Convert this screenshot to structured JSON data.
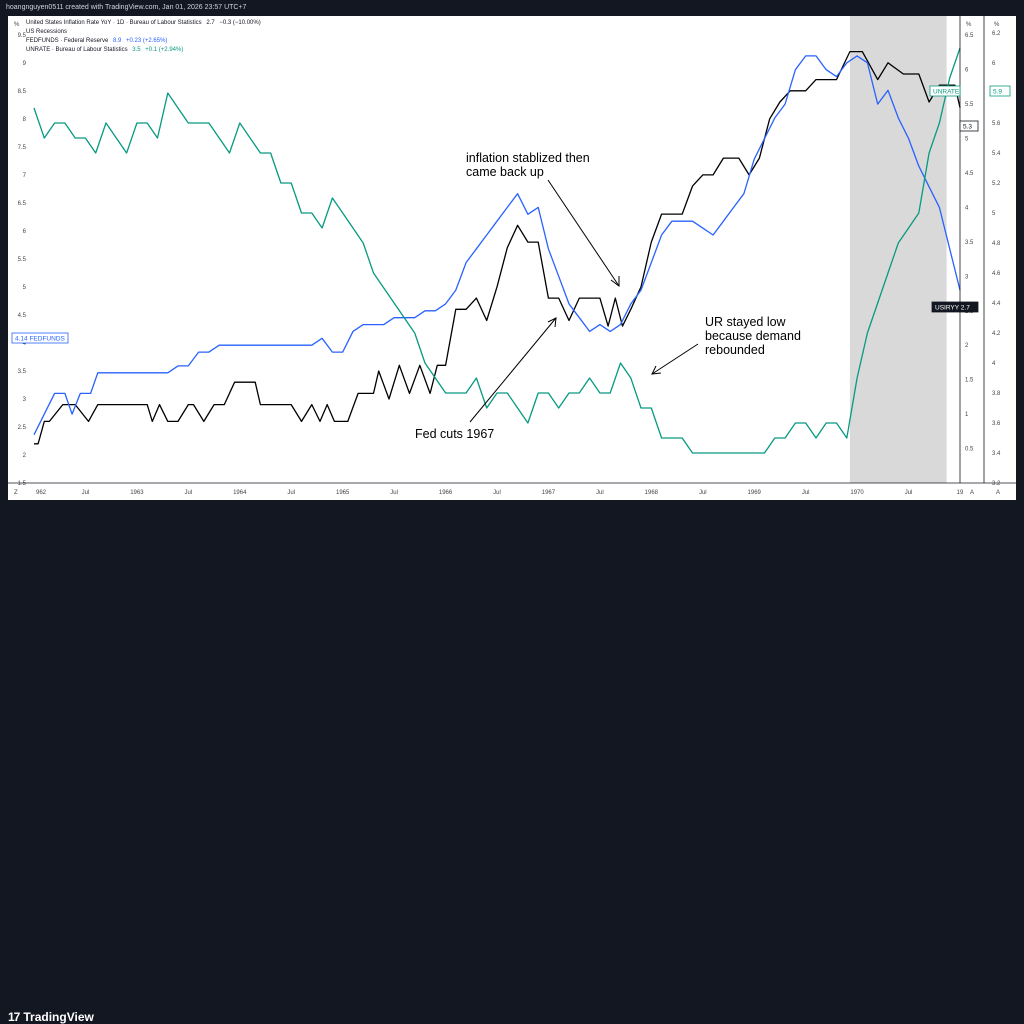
{
  "header": {
    "attribution": "hoangnguyen0511 created with TradingView.com, Jan 01, 2026 23:57 UTC+7"
  },
  "branding": {
    "logo_text": "TradingView",
    "logo_mark": "17"
  },
  "legend": [
    {
      "name": "United States Inflation Rate YoY · 1D · Bureau of Labour Statistics",
      "value": "2.7",
      "change": "−0.3 (−10.00%)",
      "color": "#131722"
    },
    {
      "name": "US Recessions",
      "value": "",
      "change": "",
      "color": "#131722"
    },
    {
      "name": "FEDFUNDS · Federal Reserve",
      "value": "8.9",
      "change": "+0.23 (+2.65%)",
      "color": "#2962ff"
    },
    {
      "name": "UNRATE · Bureau of Labour Statistics",
      "value": "3.5",
      "change": "+0.1 (+2.94%)",
      "color": "#089981"
    }
  ],
  "scale_labels": {
    "left": "%",
    "mid": "%",
    "right": "%",
    "corner_left": "Z",
    "corner_mid": "A",
    "corner_right": "A"
  },
  "axis_tags": {
    "fedfunds": {
      "value": "4.14",
      "name": "FEDFUNDS"
    },
    "inflation": {
      "name": "USIRYY",
      "value": "2.7"
    },
    "unrate_value": "5.9",
    "unrate_name": "UNRATE",
    "inflation_right": "5.3"
  },
  "annotations": {
    "inflation": [
      "inflation stablized then",
      "came back up"
    ],
    "ur": [
      "UR stayed low",
      "because demand",
      "rebounded"
    ],
    "fed": [
      "Fed cuts 1967"
    ]
  },
  "chart_data": {
    "type": "line",
    "x_labels": [
      "962",
      "Jul",
      "1963",
      "Jul",
      "1964",
      "Jul",
      "1965",
      "Jul",
      "1966",
      "Jul",
      "1967",
      "Jul",
      "1968",
      "Jul",
      "1969",
      "Jul",
      "1970",
      "Jul",
      "19"
    ],
    "x_range": [
      1962.0,
      1971.0
    ],
    "axes": {
      "inflation": {
        "range": [
          1.5,
          9.8
        ],
        "ticks": [
          "1.5",
          "2",
          "2.5",
          "3",
          "3.5",
          "4",
          "4.5",
          "5",
          "5.5",
          "6",
          "6.5",
          "7",
          "7.5",
          "8",
          "8.5",
          "9",
          "9.5"
        ]
      },
      "fedfunds": {
        "range": [
          0,
          6.75
        ],
        "ticks": [
          "0.5",
          "1",
          "1.5",
          "2",
          "2.5",
          "3",
          "3.5",
          "4",
          "4.5",
          "5",
          "5.5",
          "6",
          "6.5"
        ]
      },
      "unrate": {
        "range": [
          3.2,
          6.3
        ],
        "ticks": [
          "3.2",
          "3.4",
          "3.6",
          "3.8",
          "4",
          "4.2",
          "4.4",
          "4.6",
          "4.8",
          "5",
          "5.2",
          "5.4",
          "5.6",
          "5.8",
          "6",
          "6.2"
        ]
      }
    },
    "recession": {
      "start": 1969.93,
      "end": 1970.87
    },
    "series": [
      {
        "name": "United States Inflation Rate YoY",
        "axis": "inflation",
        "color": "#000000",
        "points": [
          [
            1962.0,
            2.2
          ],
          [
            1962.04,
            2.2
          ],
          [
            1962.1,
            2.6
          ],
          [
            1962.15,
            2.6
          ],
          [
            1962.28,
            2.9
          ],
          [
            1962.4,
            2.9
          ],
          [
            1962.53,
            2.6
          ],
          [
            1962.62,
            2.9
          ],
          [
            1963.0,
            2.9
          ],
          [
            1963.1,
            2.9
          ],
          [
            1963.15,
            2.6
          ],
          [
            1963.22,
            2.9
          ],
          [
            1963.3,
            2.6
          ],
          [
            1963.4,
            2.6
          ],
          [
            1963.5,
            2.9
          ],
          [
            1963.55,
            2.9
          ],
          [
            1963.65,
            2.6
          ],
          [
            1963.75,
            2.9
          ],
          [
            1963.85,
            2.9
          ],
          [
            1963.95,
            3.3
          ],
          [
            1964.15,
            3.3
          ],
          [
            1964.2,
            2.9
          ],
          [
            1964.5,
            2.9
          ],
          [
            1964.6,
            2.6
          ],
          [
            1964.7,
            2.9
          ],
          [
            1964.78,
            2.6
          ],
          [
            1964.85,
            2.9
          ],
          [
            1964.92,
            2.6
          ],
          [
            1965.05,
            2.6
          ],
          [
            1965.15,
            3.1
          ],
          [
            1965.3,
            3.1
          ],
          [
            1965.35,
            3.5
          ],
          [
            1965.45,
            3.0
          ],
          [
            1965.55,
            3.6
          ],
          [
            1965.65,
            3.1
          ],
          [
            1965.75,
            3.6
          ],
          [
            1965.85,
            3.1
          ],
          [
            1965.92,
            3.6
          ],
          [
            1966.0,
            3.6
          ],
          [
            1966.1,
            4.6
          ],
          [
            1966.2,
            4.6
          ],
          [
            1966.3,
            4.8
          ],
          [
            1966.4,
            4.4
          ],
          [
            1966.5,
            5.0
          ],
          [
            1966.6,
            5.7
          ],
          [
            1966.7,
            6.1
          ],
          [
            1966.8,
            5.8
          ],
          [
            1966.9,
            5.8
          ],
          [
            1967.0,
            4.8
          ],
          [
            1967.1,
            4.8
          ],
          [
            1967.2,
            4.4
          ],
          [
            1967.3,
            4.8
          ],
          [
            1967.4,
            4.8
          ],
          [
            1967.5,
            4.8
          ],
          [
            1967.58,
            4.3
          ],
          [
            1967.65,
            4.8
          ],
          [
            1967.72,
            4.3
          ],
          [
            1967.8,
            4.6
          ],
          [
            1967.9,
            5.0
          ],
          [
            1968.0,
            5.8
          ],
          [
            1968.1,
            6.3
          ],
          [
            1968.2,
            6.3
          ],
          [
            1968.3,
            6.3
          ],
          [
            1968.4,
            6.8
          ],
          [
            1968.5,
            7.0
          ],
          [
            1968.6,
            7.0
          ],
          [
            1968.7,
            7.3
          ],
          [
            1968.85,
            7.3
          ],
          [
            1968.95,
            7.0
          ],
          [
            1969.05,
            7.3
          ],
          [
            1969.15,
            8.0
          ],
          [
            1969.25,
            8.3
          ],
          [
            1969.35,
            8.5
          ],
          [
            1969.5,
            8.5
          ],
          [
            1969.6,
            8.7
          ],
          [
            1969.8,
            8.7
          ],
          [
            1969.93,
            9.2
          ],
          [
            1970.05,
            9.2
          ],
          [
            1970.2,
            8.7
          ],
          [
            1970.3,
            9.0
          ],
          [
            1970.45,
            8.8
          ],
          [
            1970.6,
            8.8
          ],
          [
            1970.7,
            8.3
          ],
          [
            1970.8,
            8.6
          ],
          [
            1970.95,
            8.6
          ],
          [
            1971.0,
            8.2
          ]
        ]
      },
      {
        "name": "FEDFUNDS",
        "axis": "fedfunds",
        "color": "#2962ff",
        "points": [
          [
            1962.0,
            0.7
          ],
          [
            1962.1,
            1.0
          ],
          [
            1962.2,
            1.3
          ],
          [
            1962.3,
            1.3
          ],
          [
            1962.37,
            1.0
          ],
          [
            1962.45,
            1.3
          ],
          [
            1962.55,
            1.3
          ],
          [
            1962.62,
            1.6
          ],
          [
            1963.0,
            1.6
          ],
          [
            1963.1,
            1.6
          ],
          [
            1963.2,
            1.6
          ],
          [
            1963.3,
            1.6
          ],
          [
            1963.4,
            1.7
          ],
          [
            1963.5,
            1.7
          ],
          [
            1963.6,
            1.9
          ],
          [
            1963.7,
            1.9
          ],
          [
            1963.8,
            2.0
          ],
          [
            1963.9,
            2.0
          ],
          [
            1964.0,
            2.0
          ],
          [
            1964.1,
            2.0
          ],
          [
            1964.2,
            2.0
          ],
          [
            1964.3,
            2.0
          ],
          [
            1964.4,
            2.0
          ],
          [
            1964.5,
            2.0
          ],
          [
            1964.6,
            2.0
          ],
          [
            1964.7,
            2.0
          ],
          [
            1964.8,
            2.1
          ],
          [
            1964.9,
            1.9
          ],
          [
            1965.0,
            1.9
          ],
          [
            1965.1,
            2.2
          ],
          [
            1965.2,
            2.3
          ],
          [
            1965.3,
            2.3
          ],
          [
            1965.4,
            2.3
          ],
          [
            1965.5,
            2.4
          ],
          [
            1965.6,
            2.4
          ],
          [
            1965.7,
            2.4
          ],
          [
            1965.8,
            2.5
          ],
          [
            1965.9,
            2.5
          ],
          [
            1966.0,
            2.6
          ],
          [
            1966.1,
            2.8
          ],
          [
            1966.2,
            3.2
          ],
          [
            1966.3,
            3.4
          ],
          [
            1966.4,
            3.6
          ],
          [
            1966.5,
            3.8
          ],
          [
            1966.6,
            4.0
          ],
          [
            1966.7,
            4.2
          ],
          [
            1966.8,
            3.9
          ],
          [
            1966.9,
            4.0
          ],
          [
            1967.0,
            3.4
          ],
          [
            1967.1,
            3.0
          ],
          [
            1967.2,
            2.6
          ],
          [
            1967.3,
            2.4
          ],
          [
            1967.4,
            2.2
          ],
          [
            1967.5,
            2.3
          ],
          [
            1967.6,
            2.2
          ],
          [
            1967.7,
            2.3
          ],
          [
            1967.8,
            2.6
          ],
          [
            1967.9,
            2.8
          ],
          [
            1968.0,
            3.2
          ],
          [
            1968.1,
            3.6
          ],
          [
            1968.2,
            3.8
          ],
          [
            1968.3,
            3.8
          ],
          [
            1968.4,
            3.8
          ],
          [
            1968.5,
            3.7
          ],
          [
            1968.6,
            3.6
          ],
          [
            1968.7,
            3.8
          ],
          [
            1968.8,
            4.0
          ],
          [
            1968.9,
            4.2
          ],
          [
            1969.0,
            4.7
          ],
          [
            1969.1,
            5.0
          ],
          [
            1969.2,
            5.3
          ],
          [
            1969.3,
            5.5
          ],
          [
            1969.4,
            6.0
          ],
          [
            1969.5,
            6.2
          ],
          [
            1969.6,
            6.2
          ],
          [
            1969.7,
            6.0
          ],
          [
            1969.8,
            5.9
          ],
          [
            1969.9,
            6.1
          ],
          [
            1970.0,
            6.2
          ],
          [
            1970.1,
            6.1
          ],
          [
            1970.2,
            5.5
          ],
          [
            1970.3,
            5.7
          ],
          [
            1970.4,
            5.3
          ],
          [
            1970.5,
            5.0
          ],
          [
            1970.6,
            4.6
          ],
          [
            1970.7,
            4.3
          ],
          [
            1970.8,
            4.0
          ],
          [
            1970.9,
            3.4
          ],
          [
            1971.0,
            2.8
          ]
        ]
      },
      {
        "name": "UNRATE",
        "axis": "unrate",
        "color": "#089981",
        "points": [
          [
            1962.0,
            5.7
          ],
          [
            1962.1,
            5.5
          ],
          [
            1962.2,
            5.6
          ],
          [
            1962.3,
            5.6
          ],
          [
            1962.4,
            5.5
          ],
          [
            1962.5,
            5.5
          ],
          [
            1962.6,
            5.4
          ],
          [
            1962.7,
            5.6
          ],
          [
            1962.8,
            5.5
          ],
          [
            1962.9,
            5.4
          ],
          [
            1963.0,
            5.6
          ],
          [
            1963.1,
            5.6
          ],
          [
            1963.2,
            5.5
          ],
          [
            1963.3,
            5.8
          ],
          [
            1963.4,
            5.7
          ],
          [
            1963.5,
            5.6
          ],
          [
            1963.6,
            5.6
          ],
          [
            1963.7,
            5.6
          ],
          [
            1963.8,
            5.5
          ],
          [
            1963.9,
            5.4
          ],
          [
            1964.0,
            5.6
          ],
          [
            1964.1,
            5.5
          ],
          [
            1964.2,
            5.4
          ],
          [
            1964.3,
            5.4
          ],
          [
            1964.4,
            5.2
          ],
          [
            1964.5,
            5.2
          ],
          [
            1964.6,
            5.0
          ],
          [
            1964.7,
            5.0
          ],
          [
            1964.8,
            4.9
          ],
          [
            1964.9,
            5.1
          ],
          [
            1965.0,
            5.0
          ],
          [
            1965.1,
            4.9
          ],
          [
            1965.2,
            4.8
          ],
          [
            1965.3,
            4.6
          ],
          [
            1965.4,
            4.5
          ],
          [
            1965.5,
            4.4
          ],
          [
            1965.6,
            4.3
          ],
          [
            1965.7,
            4.2
          ],
          [
            1965.8,
            4.0
          ],
          [
            1965.9,
            3.9
          ],
          [
            1966.0,
            3.8
          ],
          [
            1966.1,
            3.8
          ],
          [
            1966.2,
            3.8
          ],
          [
            1966.3,
            3.9
          ],
          [
            1966.4,
            3.7
          ],
          [
            1966.5,
            3.8
          ],
          [
            1966.6,
            3.8
          ],
          [
            1966.7,
            3.7
          ],
          [
            1966.8,
            3.6
          ],
          [
            1966.9,
            3.8
          ],
          [
            1967.0,
            3.8
          ],
          [
            1967.1,
            3.7
          ],
          [
            1967.2,
            3.8
          ],
          [
            1967.3,
            3.8
          ],
          [
            1967.4,
            3.9
          ],
          [
            1967.5,
            3.8
          ],
          [
            1967.6,
            3.8
          ],
          [
            1967.7,
            4.0
          ],
          [
            1967.8,
            3.9
          ],
          [
            1967.9,
            3.7
          ],
          [
            1968.0,
            3.7
          ],
          [
            1968.1,
            3.5
          ],
          [
            1968.2,
            3.5
          ],
          [
            1968.3,
            3.5
          ],
          [
            1968.4,
            3.4
          ],
          [
            1968.5,
            3.4
          ],
          [
            1968.6,
            3.4
          ],
          [
            1968.7,
            3.4
          ],
          [
            1968.8,
            3.4
          ],
          [
            1968.9,
            3.4
          ],
          [
            1969.0,
            3.4
          ],
          [
            1969.1,
            3.4
          ],
          [
            1969.2,
            3.5
          ],
          [
            1969.3,
            3.5
          ],
          [
            1969.4,
            3.6
          ],
          [
            1969.5,
            3.6
          ],
          [
            1969.6,
            3.5
          ],
          [
            1969.7,
            3.6
          ],
          [
            1969.8,
            3.6
          ],
          [
            1969.9,
            3.5
          ],
          [
            1970.0,
            3.9
          ],
          [
            1970.1,
            4.2
          ],
          [
            1970.2,
            4.4
          ],
          [
            1970.3,
            4.6
          ],
          [
            1970.4,
            4.8
          ],
          [
            1970.5,
            4.9
          ],
          [
            1970.6,
            5.0
          ],
          [
            1970.7,
            5.4
          ],
          [
            1970.8,
            5.6
          ],
          [
            1970.9,
            5.9
          ],
          [
            1971.0,
            6.1
          ]
        ]
      }
    ]
  }
}
